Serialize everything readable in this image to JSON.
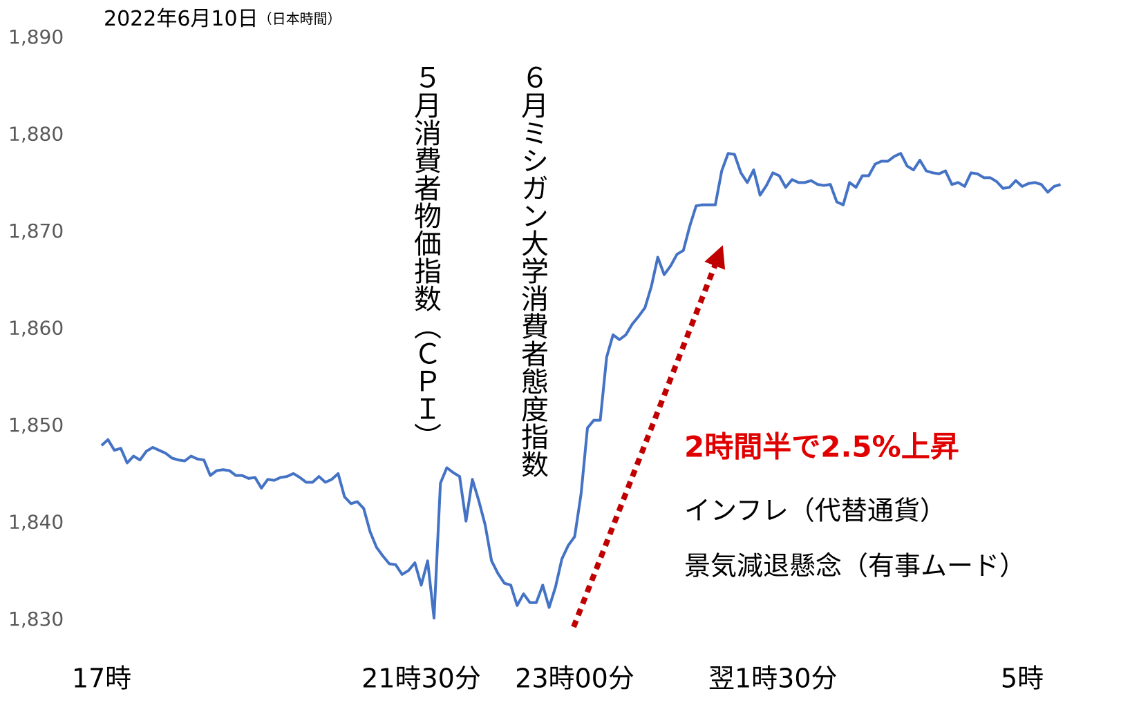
{
  "chart_data": {
    "type": "line",
    "title": "2022年6月10日",
    "subtitle": "（日本時間）",
    "categories": [
      "17時",
      null,
      null,
      null,
      null,
      null,
      null,
      null,
      null,
      null,
      null,
      null,
      null,
      null,
      null,
      null,
      null,
      null,
      null,
      null,
      null,
      null,
      null,
      null,
      null,
      null,
      null,
      null,
      null,
      null,
      null,
      null,
      null,
      null,
      null,
      null,
      null,
      null,
      null,
      null,
      null,
      null,
      null,
      null,
      null,
      null,
      null,
      null,
      null,
      null,
      "21時30分",
      null,
      null,
      null,
      null,
      null,
      null,
      null,
      null,
      null,
      null,
      null,
      null,
      null,
      null,
      null,
      null,
      null,
      null,
      null,
      null,
      null,
      null,
      null,
      "23時00分",
      null,
      null,
      null,
      null,
      null,
      null,
      null,
      null,
      null,
      null,
      null,
      null,
      null,
      null,
      null,
      null,
      null,
      null,
      null,
      null,
      null,
      null,
      null,
      null,
      null,
      null,
      null,
      null,
      null,
      null,
      "翌1時30分",
      null,
      null,
      null,
      null,
      null,
      null,
      null,
      null,
      null,
      null,
      null,
      null,
      null,
      null,
      null,
      null,
      null,
      null,
      null,
      null,
      null,
      null,
      null,
      null,
      null,
      null,
      null,
      null,
      null,
      null,
      null,
      null,
      null,
      null,
      null,
      null,
      null,
      null,
      "5時",
      null,
      null,
      null,
      null,
      null,
      null
    ],
    "series": [
      {
        "name": null,
        "color": "#4472c4",
        "values": [
          1848.0,
          1848.6,
          1847.5,
          1847.7,
          1846.2,
          1846.9,
          1846.5,
          1847.4,
          1847.8,
          1847.5,
          1847.2,
          1846.7,
          1846.5,
          1846.4,
          1846.9,
          1846.6,
          1846.5,
          1844.9,
          1845.4,
          1845.5,
          1845.4,
          1844.9,
          1844.9,
          1844.6,
          1844.7,
          1843.6,
          1844.5,
          1844.4,
          1844.7,
          1844.8,
          1845.1,
          1844.7,
          1844.2,
          1844.2,
          1844.8,
          1844.2,
          1844.5,
          1845.1,
          1842.7,
          1842.0,
          1842.2,
          1841.5,
          1839.1,
          1837.5,
          1836.6,
          1835.8,
          1835.7,
          1834.7,
          1835.1,
          1835.9,
          1833.6,
          1836.1,
          1830.2,
          1844.1,
          1845.7,
          1845.2,
          1844.8,
          1840.2,
          1844.5,
          1842.3,
          1839.8,
          1836.1,
          1834.8,
          1833.8,
          1833.6,
          1831.5,
          1832.7,
          1831.8,
          1831.8,
          1833.6,
          1831.3,
          1833.4,
          1836.3,
          1837.7,
          1838.6,
          1843.0,
          1849.8,
          1850.6,
          1850.6,
          1857.1,
          1859.4,
          1858.9,
          1859.4,
          1860.5,
          1861.3,
          1862.2,
          1864.4,
          1867.4,
          1865.6,
          1866.5,
          1867.7,
          1868.1,
          1870.6,
          1872.7,
          1872.8,
          1872.8,
          1872.8,
          1876.3,
          1878.1,
          1878.0,
          1876.1,
          1875.1,
          1876.4,
          1873.8,
          1874.8,
          1876.1,
          1875.8,
          1874.6,
          1875.4,
          1875.1,
          1875.1,
          1875.3,
          1874.9,
          1874.8,
          1874.9,
          1873.1,
          1872.8,
          1875.1,
          1874.6,
          1875.8,
          1875.8,
          1877.0,
          1877.3,
          1877.3,
          1877.8,
          1878.1,
          1876.8,
          1876.4,
          1877.4,
          1876.3,
          1876.1,
          1876.0,
          1876.3,
          1874.9,
          1875.1,
          1874.7,
          1876.1,
          1876.0,
          1875.6,
          1875.6,
          1875.2,
          1874.5,
          1874.6,
          1875.3,
          1874.7,
          1875.0,
          1875.1,
          1874.9,
          1874.1,
          1874.7,
          1874.9
        ]
      }
    ],
    "ylim": [
      1830,
      1890
    ],
    "yticks": [
      {
        "value": 1830,
        "label": "1,830"
      },
      {
        "value": 1840,
        "label": "1,840"
      },
      {
        "value": 1850,
        "label": "1,850"
      },
      {
        "value": 1860,
        "label": "1,860"
      },
      {
        "value": 1870,
        "label": "1,870"
      },
      {
        "value": 1880,
        "label": "1,880"
      },
      {
        "value": 1890,
        "label": "1,890"
      }
    ],
    "grid": false,
    "annotations": [
      "５月消費者物価指数（ＣＰＩ）",
      "６月ミシガン大学消費者態度指数",
      "2時間半で2.5%上昇",
      "インフレ（代替通貨）",
      "景気減退懸念（有事ムード）"
    ]
  }
}
